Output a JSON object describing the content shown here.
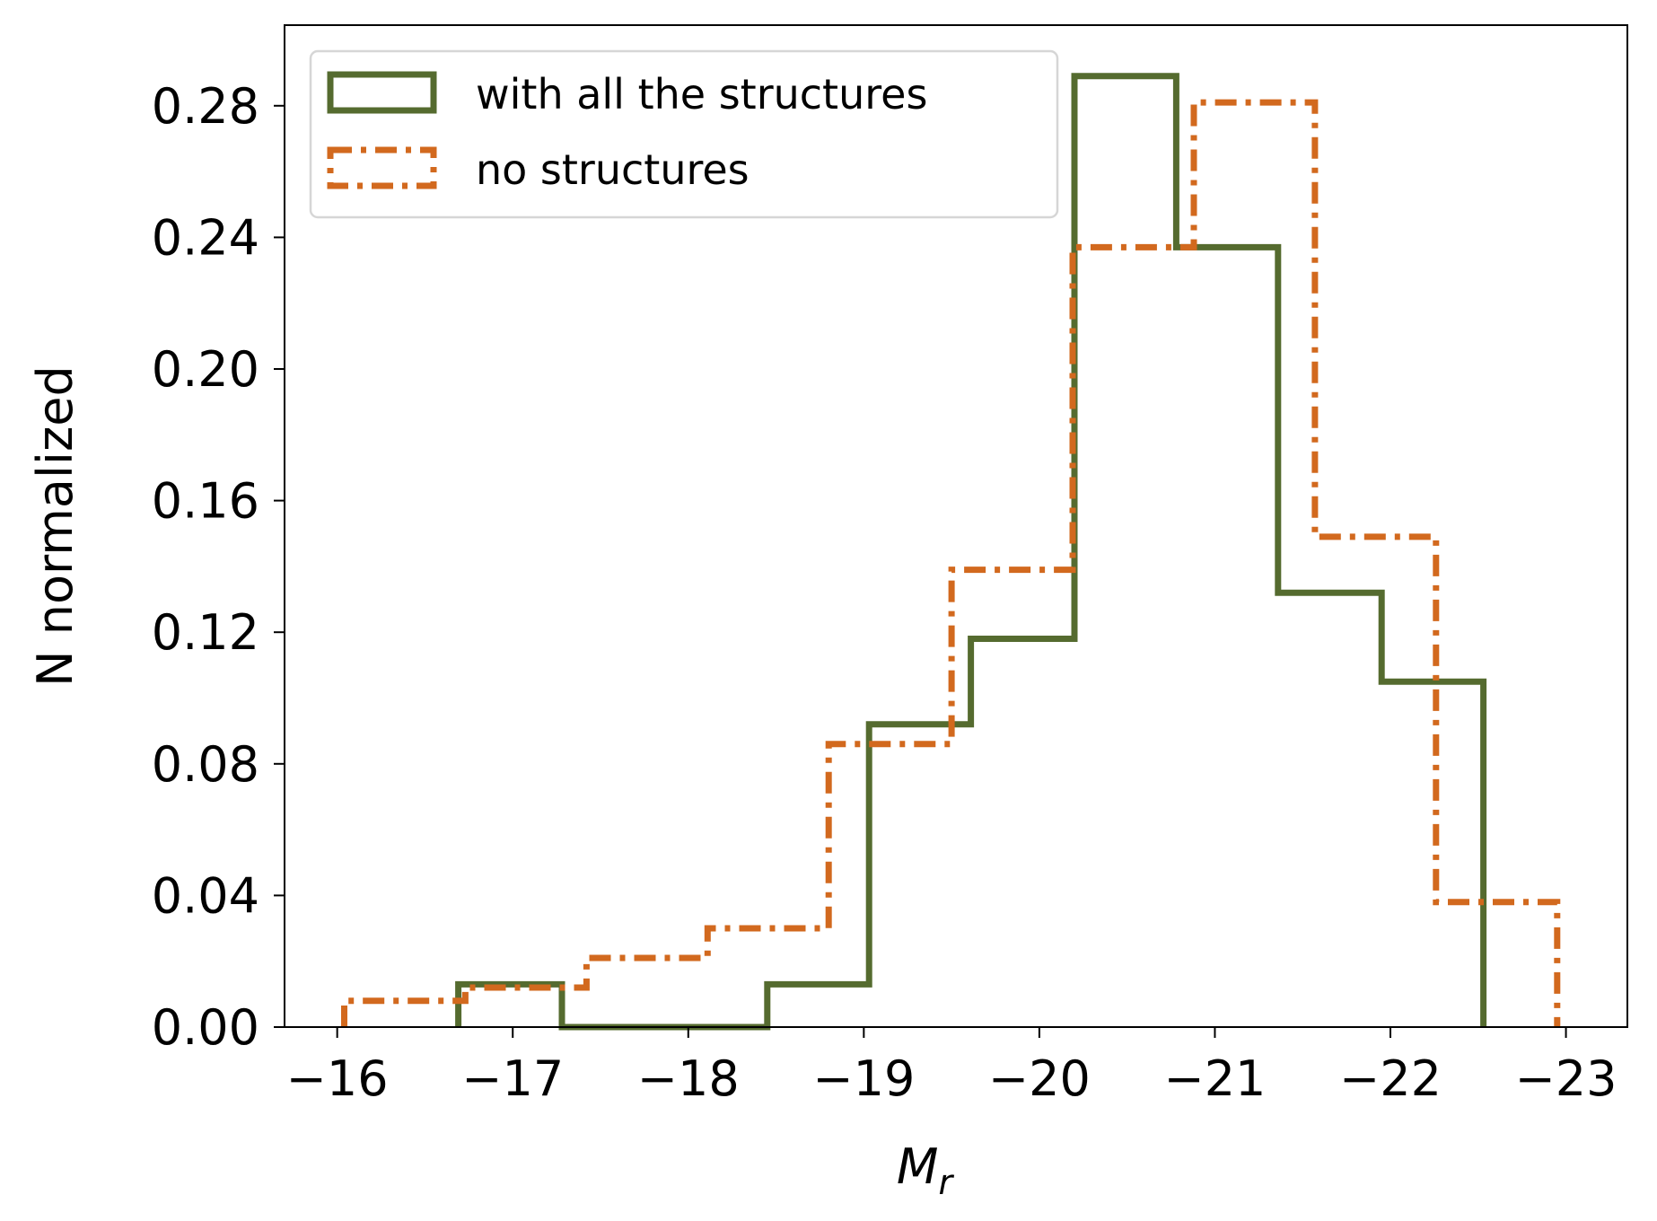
{
  "chart_data": {
    "type": "step-histogram",
    "xlabel": "M",
    "xlabel_sub": "r",
    "ylabel": "N normalized",
    "xlim": [
      -15.7,
      -23.35
    ],
    "ylim": [
      0.0,
      0.3045
    ],
    "x_ticks": [
      -16,
      -17,
      -18,
      -19,
      -20,
      -21,
      -22,
      -23
    ],
    "x_tick_labels": [
      "−16",
      "−17",
      "−18",
      "−19",
      "−20",
      "−21",
      "−22",
      "−23"
    ],
    "y_ticks": [
      0.0,
      0.04,
      0.08,
      0.12,
      0.16,
      0.2,
      0.24,
      0.28
    ],
    "y_tick_labels": [
      "0.00",
      "0.04",
      "0.08",
      "0.12",
      "0.16",
      "0.20",
      "0.24",
      "0.28"
    ],
    "legend_position": "upper-left",
    "series": [
      {
        "name": "with all the structures",
        "color": "#556b2f",
        "linestyle": "solid",
        "bin_edges": [
          -16.69,
          -17.28,
          -17.86,
          -18.45,
          -19.03,
          -19.61,
          -20.2,
          -20.78,
          -21.36,
          -21.95,
          -22.53
        ],
        "values": [
          0.013,
          0.0,
          0.0,
          0.013,
          0.092,
          0.118,
          0.289,
          0.237,
          0.132,
          0.105
        ]
      },
      {
        "name": "no structures",
        "color": "#d2691e",
        "linestyle": "dashdot",
        "bin_edges": [
          -16.04,
          -16.73,
          -17.42,
          -18.11,
          -18.8,
          -19.5,
          -20.19,
          -20.88,
          -21.57,
          -22.26,
          -22.95
        ],
        "values": [
          0.008,
          0.012,
          0.021,
          0.03,
          0.086,
          0.139,
          0.237,
          0.281,
          0.149,
          0.038
        ]
      }
    ]
  }
}
